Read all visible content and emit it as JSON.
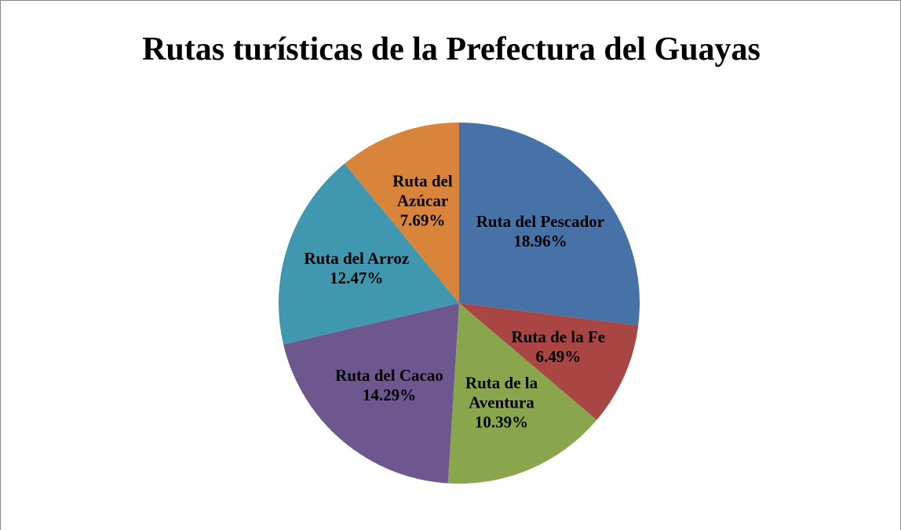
{
  "chart_data": {
    "type": "pie",
    "title": "Rutas turísticas de la Prefectura del Guayas",
    "categories": [
      "Ruta del Pescador",
      "Ruta de la Fe",
      "Ruta de la Aventura",
      "Ruta del Cacao",
      "Ruta del Arroz",
      "Ruta del Azúcar"
    ],
    "values": [
      18.96,
      6.49,
      10.39,
      14.29,
      12.47,
      7.69
    ],
    "value_labels": [
      "18.96%",
      "6.49%",
      "10.39%",
      "14.29%",
      "12.47%",
      "7.69%"
    ],
    "colors": [
      "#4672a8",
      "#a94543",
      "#8aa64c",
      "#6e568f",
      "#3f97b0",
      "#d9843b"
    ]
  }
}
